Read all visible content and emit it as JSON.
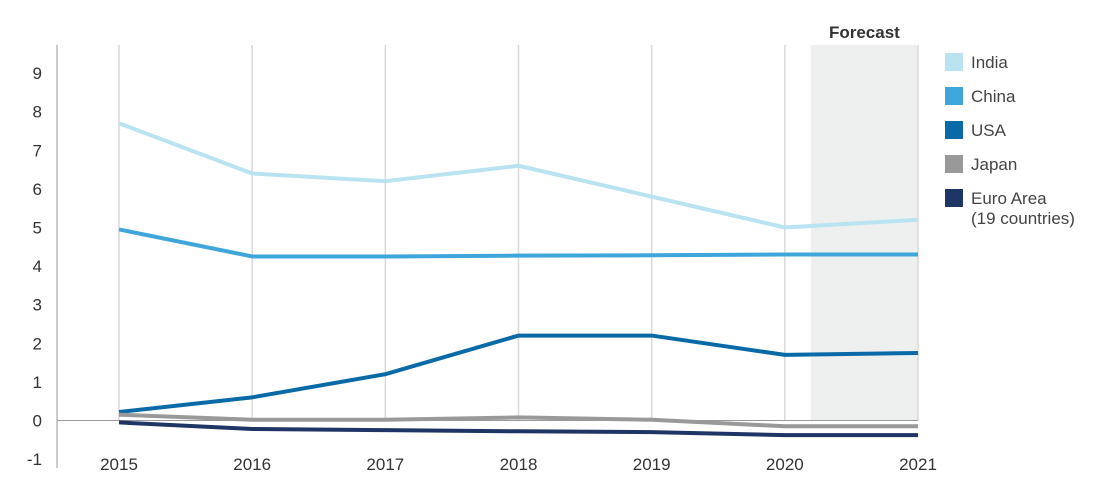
{
  "chart_data": {
    "type": "line",
    "x": [
      "2015",
      "2016",
      "2017",
      "2018",
      "2019",
      "2020",
      "2021"
    ],
    "y_ticks": [
      "-1",
      "0",
      "1",
      "2",
      "3",
      "4",
      "5",
      "6",
      "7",
      "8",
      "9"
    ],
    "ylim": [
      -1,
      9.5
    ],
    "forecast_label": "Forecast",
    "forecast_span": [
      "2020",
      "2021"
    ],
    "grid": "vertical",
    "legend_position": "right",
    "series": [
      {
        "name": "India",
        "color": "#b9e3f0",
        "values": [
          7.7,
          6.4,
          6.2,
          6.6,
          5.8,
          5.0,
          5.2
        ]
      },
      {
        "name": "China",
        "color": "#3fa6dc",
        "values": [
          4.95,
          4.25,
          4.25,
          4.27,
          4.28,
          4.3,
          4.3
        ]
      },
      {
        "name": "USA",
        "color": "#0a6aa8",
        "values": [
          0.22,
          0.6,
          1.2,
          2.2,
          2.2,
          1.7,
          1.75
        ]
      },
      {
        "name": "Japan",
        "color": "#999999",
        "values": [
          0.15,
          0.02,
          0.02,
          0.08,
          0.02,
          -0.15,
          -0.15
        ]
      },
      {
        "name": "Euro Area\n(19 countries)",
        "color": "#1e3566",
        "values": [
          -0.05,
          -0.22,
          -0.25,
          -0.28,
          -0.3,
          -0.38,
          -0.38
        ]
      }
    ]
  }
}
